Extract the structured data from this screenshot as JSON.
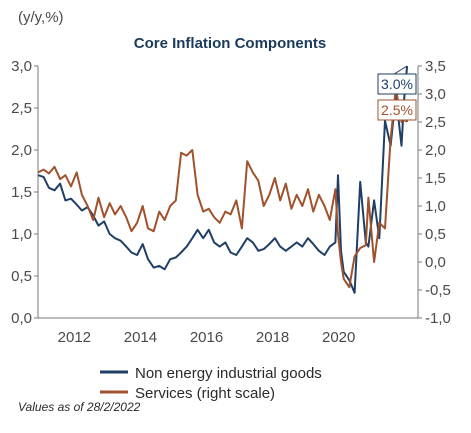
{
  "chart_data": {
    "type": "line",
    "title": "Core Inflation Components",
    "unit_label": "(y/y,%)",
    "x_ticks": [
      "2012",
      "2014",
      "2016",
      "2018",
      "2020"
    ],
    "y_left": {
      "range": [
        0.0,
        3.0
      ],
      "ticks": [
        "0,0",
        "0,5",
        "1,0",
        "1,5",
        "2,0",
        "2,5",
        "3,0"
      ]
    },
    "y_right": {
      "range": [
        -1.0,
        3.5
      ],
      "ticks": [
        "-1,0",
        "-0,5",
        "0,0",
        "0,5",
        "1,0",
        "1,5",
        "2,0",
        "2,5",
        "3,0",
        "3,5"
      ]
    },
    "grid": false,
    "legend_position": "bottom",
    "note": "Values as of 28/2/2022",
    "series": [
      {
        "name": "Non energy industrial goods",
        "axis": "left",
        "color": "#1f3f66",
        "latest_label": "3.0%",
        "points": [
          [
            2011.0,
            1.7
          ],
          [
            2011.17,
            1.68
          ],
          [
            2011.33,
            1.55
          ],
          [
            2011.5,
            1.52
          ],
          [
            2011.67,
            1.6
          ],
          [
            2011.83,
            1.4
          ],
          [
            2012.0,
            1.42
          ],
          [
            2012.17,
            1.35
          ],
          [
            2012.33,
            1.28
          ],
          [
            2012.5,
            1.32
          ],
          [
            2012.67,
            1.22
          ],
          [
            2012.83,
            1.1
          ],
          [
            2013.0,
            1.15
          ],
          [
            2013.17,
            1.0
          ],
          [
            2013.33,
            0.95
          ],
          [
            2013.5,
            0.92
          ],
          [
            2013.67,
            0.85
          ],
          [
            2013.83,
            0.78
          ],
          [
            2014.0,
            0.75
          ],
          [
            2014.17,
            0.88
          ],
          [
            2014.33,
            0.7
          ],
          [
            2014.5,
            0.6
          ],
          [
            2014.67,
            0.62
          ],
          [
            2014.83,
            0.58
          ],
          [
            2015.0,
            0.7
          ],
          [
            2015.17,
            0.72
          ],
          [
            2015.33,
            0.78
          ],
          [
            2015.5,
            0.85
          ],
          [
            2015.67,
            0.95
          ],
          [
            2015.83,
            1.05
          ],
          [
            2016.0,
            0.95
          ],
          [
            2016.17,
            1.05
          ],
          [
            2016.33,
            0.9
          ],
          [
            2016.5,
            0.85
          ],
          [
            2016.67,
            0.9
          ],
          [
            2016.83,
            0.78
          ],
          [
            2017.0,
            0.75
          ],
          [
            2017.17,
            0.85
          ],
          [
            2017.33,
            0.95
          ],
          [
            2017.5,
            0.9
          ],
          [
            2017.67,
            0.8
          ],
          [
            2017.83,
            0.82
          ],
          [
            2018.0,
            0.88
          ],
          [
            2018.17,
            0.95
          ],
          [
            2018.33,
            0.85
          ],
          [
            2018.5,
            0.8
          ],
          [
            2018.67,
            0.85
          ],
          [
            2018.83,
            0.9
          ],
          [
            2019.0,
            0.85
          ],
          [
            2019.17,
            0.95
          ],
          [
            2019.33,
            0.88
          ],
          [
            2019.5,
            0.8
          ],
          [
            2019.67,
            0.75
          ],
          [
            2019.83,
            0.85
          ],
          [
            2020.0,
            0.9
          ],
          [
            2020.08,
            1.7
          ],
          [
            2020.17,
            0.8
          ],
          [
            2020.25,
            0.55
          ],
          [
            2020.42,
            0.45
          ],
          [
            2020.58,
            0.3
          ],
          [
            2020.75,
            1.62
          ],
          [
            2020.92,
            0.9
          ],
          [
            2021.0,
            0.85
          ],
          [
            2021.17,
            1.4
          ],
          [
            2021.33,
            0.95
          ],
          [
            2021.5,
            2.35
          ],
          [
            2021.67,
            2.05
          ],
          [
            2021.83,
            2.65
          ],
          [
            2022.0,
            2.05
          ],
          [
            2022.08,
            2.6
          ],
          [
            2022.17,
            3.0
          ]
        ]
      },
      {
        "name": "Services (right scale)",
        "axis": "right",
        "color": "#a0522d",
        "latest_label": "2.5%",
        "points": [
          [
            2011.0,
            1.6
          ],
          [
            2011.17,
            1.65
          ],
          [
            2011.33,
            1.58
          ],
          [
            2011.5,
            1.7
          ],
          [
            2011.67,
            1.48
          ],
          [
            2011.83,
            1.55
          ],
          [
            2012.0,
            1.35
          ],
          [
            2012.17,
            1.6
          ],
          [
            2012.33,
            1.2
          ],
          [
            2012.5,
            1.0
          ],
          [
            2012.67,
            0.75
          ],
          [
            2012.83,
            1.15
          ],
          [
            2013.0,
            0.8
          ],
          [
            2013.17,
            1.05
          ],
          [
            2013.33,
            0.85
          ],
          [
            2013.5,
            1.0
          ],
          [
            2013.67,
            0.8
          ],
          [
            2013.83,
            0.55
          ],
          [
            2014.0,
            0.7
          ],
          [
            2014.17,
            1.0
          ],
          [
            2014.33,
            0.6
          ],
          [
            2014.5,
            0.55
          ],
          [
            2014.67,
            0.9
          ],
          [
            2014.83,
            0.75
          ],
          [
            2015.0,
            1.0
          ],
          [
            2015.17,
            1.1
          ],
          [
            2015.33,
            1.95
          ],
          [
            2015.5,
            1.9
          ],
          [
            2015.67,
            2.0
          ],
          [
            2015.83,
            1.2
          ],
          [
            2016.0,
            0.9
          ],
          [
            2016.17,
            0.95
          ],
          [
            2016.33,
            0.8
          ],
          [
            2016.5,
            0.7
          ],
          [
            2016.67,
            0.9
          ],
          [
            2016.83,
            0.85
          ],
          [
            2017.0,
            1.1
          ],
          [
            2017.17,
            0.6
          ],
          [
            2017.33,
            1.8
          ],
          [
            2017.5,
            1.6
          ],
          [
            2017.67,
            1.45
          ],
          [
            2017.83,
            1.0
          ],
          [
            2018.0,
            1.2
          ],
          [
            2018.17,
            1.5
          ],
          [
            2018.33,
            1.1
          ],
          [
            2018.5,
            1.4
          ],
          [
            2018.67,
            0.95
          ],
          [
            2018.83,
            1.2
          ],
          [
            2019.0,
            1.0
          ],
          [
            2019.17,
            1.3
          ],
          [
            2019.33,
            0.9
          ],
          [
            2019.5,
            1.2
          ],
          [
            2019.67,
            1.0
          ],
          [
            2019.83,
            0.75
          ],
          [
            2020.0,
            1.3
          ],
          [
            2020.08,
            0.5
          ],
          [
            2020.17,
            0.0
          ],
          [
            2020.25,
            -0.3
          ],
          [
            2020.42,
            -0.45
          ],
          [
            2020.58,
            0.1
          ],
          [
            2020.75,
            0.25
          ],
          [
            2020.92,
            0.3
          ],
          [
            2021.0,
            1.15
          ],
          [
            2021.17,
            0.0
          ],
          [
            2021.33,
            0.7
          ],
          [
            2021.5,
            0.6
          ],
          [
            2021.67,
            2.2
          ],
          [
            2021.83,
            3.1
          ],
          [
            2022.0,
            2.5
          ],
          [
            2022.08,
            2.85
          ],
          [
            2022.17,
            2.5
          ]
        ]
      }
    ]
  }
}
